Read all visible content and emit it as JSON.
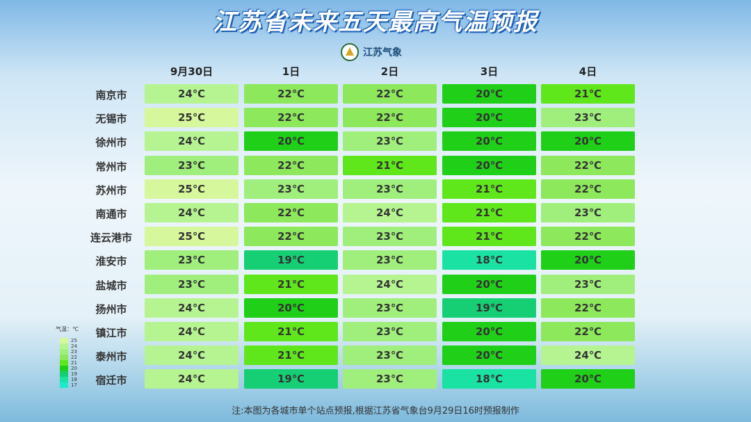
{
  "header": {
    "title": "江苏省未来五天最高气温预报",
    "logo": "江苏气象"
  },
  "table": {
    "columns": [
      "9月30日",
      "1日",
      "2日",
      "3日",
      "4日"
    ],
    "rows": [
      [
        "南京市",
        "24℃",
        "22℃",
        "22℃",
        "20℃",
        "21℃"
      ],
      [
        "无锡市",
        "25℃",
        "22℃",
        "22℃",
        "20℃",
        "23℃"
      ],
      [
        "徐州市",
        "24℃",
        "20℃",
        "23℃",
        "20℃",
        "20℃"
      ],
      [
        "常州市",
        "23℃",
        "22℃",
        "21℃",
        "20℃",
        "22℃"
      ],
      [
        "苏州市",
        "25℃",
        "23℃",
        "23℃",
        "21℃",
        "22℃"
      ],
      [
        "南通市",
        "24℃",
        "22℃",
        "24℃",
        "21℃",
        "23℃"
      ],
      [
        "连云港市",
        "25℃",
        "22℃",
        "23℃",
        "21℃",
        "22℃"
      ],
      [
        "淮安市",
        "23℃",
        "19℃",
        "23℃",
        "18℃",
        "20℃"
      ],
      [
        "盐城市",
        "23℃",
        "21℃",
        "24℃",
        "20℃",
        "23℃"
      ],
      [
        "扬州市",
        "24℃",
        "20℃",
        "23℃",
        "19℃",
        "22℃"
      ],
      [
        "镇江市",
        "24℃",
        "21℃",
        "23℃",
        "20℃",
        "22℃"
      ],
      [
        "泰州市",
        "24℃",
        "21℃",
        "23℃",
        "20℃",
        "24℃"
      ],
      [
        "宿迁市",
        "24℃",
        "19℃",
        "23℃",
        "18℃",
        "20℃"
      ]
    ]
  },
  "legend": {
    "title": "气温：℃",
    "items": [
      {
        "label": "25",
        "color": "#d6f79c"
      },
      {
        "label": "24",
        "color": "#b6f492"
      },
      {
        "label": "23",
        "color": "#a0ef7c"
      },
      {
        "label": "22",
        "color": "#8de85c"
      },
      {
        "label": "21",
        "color": "#5fe71c"
      },
      {
        "label": "20",
        "color": "#1fcf18"
      },
      {
        "label": "19",
        "color": "#16cf74"
      },
      {
        "label": "18",
        "color": "#19e2a2"
      },
      {
        "label": "17",
        "color": "#1fe9cc"
      }
    ]
  },
  "footnote": "注:本图为各城市单个站点预报,根据江苏省气象台9月29日16时预报制作"
}
